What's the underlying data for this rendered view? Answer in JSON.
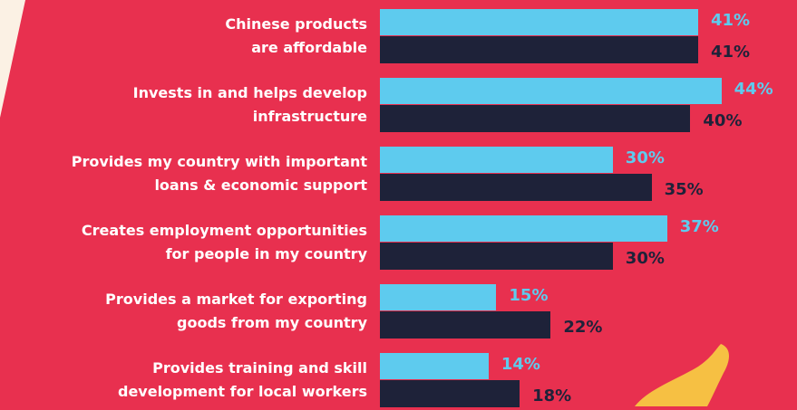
{
  "chart_data": {
    "type": "bar",
    "orientation": "horizontal",
    "categories": [
      "Chinese products\nare affordable",
      "Invests in and helps develop\ninfrastructure",
      "Provides my country with important\nloans & economic support",
      "Creates employment opportunities\nfor people in my country",
      "Provides a market for exporting\ngoods from my country",
      "Provides training and skill\ndevelopment for local workers"
    ],
    "series": [
      {
        "color": "#5ecbee",
        "values": [
          41,
          44,
          30,
          37,
          15,
          14
        ],
        "value_labels": [
          "41%",
          "44%",
          "30%",
          "37%",
          "15%",
          "14%"
        ]
      },
      {
        "color": "#1e2239",
        "values": [
          41,
          40,
          35,
          30,
          22,
          18
        ],
        "value_labels": [
          "41%",
          "40%",
          "35%",
          "30%",
          "22%",
          "18%"
        ]
      }
    ]
  }
}
